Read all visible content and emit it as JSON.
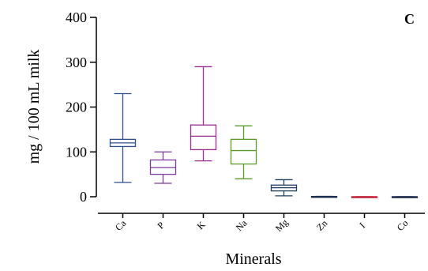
{
  "chart_data": {
    "type": "box",
    "panel_label": "C",
    "xlabel": "Minerals",
    "ylabel": "mg / 100 mL milk",
    "ylim": [
      0,
      400
    ],
    "yticks": [
      0,
      100,
      200,
      300,
      400
    ],
    "categories": [
      "Ca",
      "P",
      "K",
      "Na",
      "Mg",
      "Zn",
      "I",
      "Co"
    ],
    "boxes": [
      {
        "category": "Ca",
        "min": 32,
        "q1": 112,
        "median": 120,
        "q3": 128,
        "max": 230,
        "color": "#2f4f8f"
      },
      {
        "category": "P",
        "min": 30,
        "q1": 50,
        "median": 65,
        "q3": 82,
        "max": 100,
        "color": "#7a3aa0"
      },
      {
        "category": "K",
        "min": 80,
        "q1": 105,
        "median": 135,
        "q3": 160,
        "max": 290,
        "color": "#9c2b8e"
      },
      {
        "category": "Na",
        "min": 40,
        "q1": 73,
        "median": 103,
        "q3": 128,
        "max": 158,
        "color": "#5a9a2a"
      },
      {
        "category": "Mg",
        "min": 2,
        "q1": 13,
        "median": 20,
        "q3": 26,
        "max": 38,
        "color": "#1f3f5f"
      },
      {
        "category": "Zn",
        "min": 0.4,
        "q1": 0.5,
        "median": 0.6,
        "q3": 0.7,
        "max": 0.8,
        "color": "#1f2f4f"
      },
      {
        "category": "I",
        "min": 0.02,
        "q1": 0.03,
        "median": 0.04,
        "q3": 0.05,
        "max": 0.06,
        "color": "#c2273a"
      },
      {
        "category": "Co",
        "min": 0.01,
        "q1": 0.02,
        "median": 0.03,
        "q3": 0.04,
        "max": 0.05,
        "color": "#1f2f4f"
      }
    ]
  }
}
